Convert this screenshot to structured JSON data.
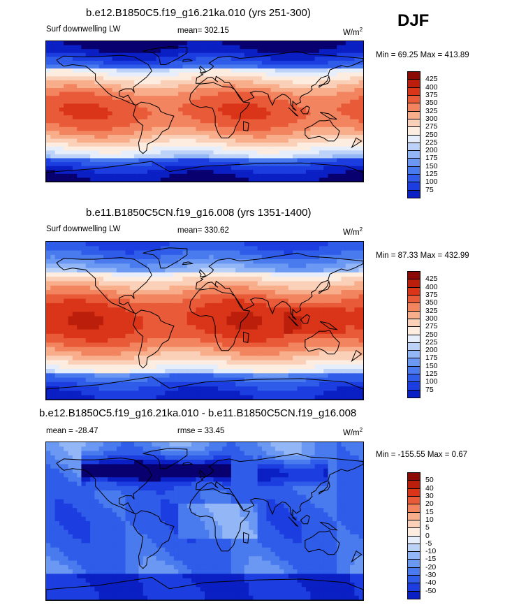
{
  "season": "DJF",
  "colors": {
    "ramp": [
      "#08006e",
      "#0a1fc4",
      "#1c3ee0",
      "#2f5ce8",
      "#4a7bee",
      "#6b98f2",
      "#93b6f6",
      "#bcd2f9",
      "#e6eefb",
      "#fdece0",
      "#fbd0b8",
      "#f8ad8b",
      "#f2845f",
      "#e95b38",
      "#da3518",
      "#bb1e0a",
      "#8c0a05"
    ]
  },
  "panels": [
    {
      "title": "b.e12.B1850C5.f19_g16.21ka.010 (yrs 251-300)",
      "variable": "Surf downwelling LW",
      "mean": "mean= 302.15",
      "units": "W/m",
      "units_sup": "2",
      "minmax": "Min =  69.25 Max = 413.89"
    },
    {
      "title": "b.e11.B1850C5CN.f19_g16.008 (yrs 1351-1400)",
      "variable": "Surf downwelling LW",
      "mean": "mean= 330.62",
      "units": "W/m",
      "units_sup": "2",
      "minmax": "Min =  87.33 Max = 432.99"
    },
    {
      "title": "b.e12.B1850C5.f19_g16.21ka.010 - b.e11.B1850C5CN.f19_g16.008",
      "variable": "mean = -28.47",
      "mean": "rmse =  33.45",
      "units": "W/m",
      "units_sup": "2",
      "minmax": "Min = -155.55 Max =   0.67"
    }
  ],
  "chart_data": [
    {
      "type": "heatmap",
      "title": "b.e12.B1850C5.f19_g16.21ka.010 (yrs 251-300)",
      "variable": "Surf downwelling LW",
      "units": "W/m2",
      "mean": 302.15,
      "min": 69.25,
      "max": 413.89,
      "colorbar_levels": [
        425,
        400,
        375,
        350,
        325,
        300,
        275,
        250,
        225,
        200,
        175,
        150,
        125,
        100,
        75
      ]
    },
    {
      "type": "heatmap",
      "title": "b.e11.B1850C5CN.f19_g16.008 (yrs 1351-1400)",
      "variable": "Surf downwelling LW",
      "units": "W/m2",
      "mean": 330.62,
      "min": 87.33,
      "max": 432.99,
      "colorbar_levels": [
        425,
        400,
        375,
        350,
        325,
        300,
        275,
        250,
        225,
        200,
        175,
        150,
        125,
        100,
        75
      ]
    },
    {
      "type": "heatmap",
      "title": "b.e12.B1850C5.f19_g16.21ka.010 - b.e11.B1850C5CN.f19_g16.008",
      "units": "W/m2",
      "mean": -28.47,
      "rmse": 33.45,
      "min": -155.55,
      "max": 0.67,
      "colorbar_levels": [
        50,
        40,
        30,
        20,
        15,
        10,
        5,
        0,
        -5,
        -10,
        -15,
        -20,
        -30,
        -40,
        -50
      ]
    }
  ]
}
